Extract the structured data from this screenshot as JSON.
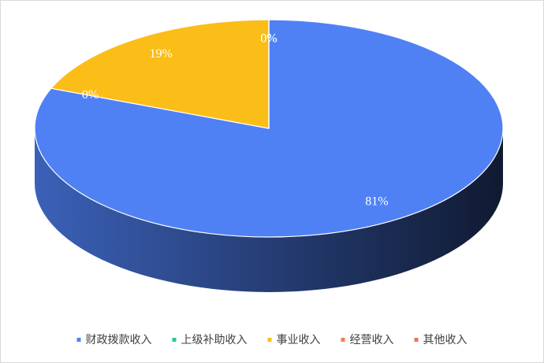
{
  "chart_data": {
    "type": "pie3d",
    "categories": [
      "财政拨款收入",
      "上级补助收入",
      "事业收入",
      "经营收入",
      "其他收入"
    ],
    "values": [
      81,
      0,
      19,
      0,
      0
    ],
    "value_labels": [
      "81%",
      "0%",
      "19%",
      "0%",
      "0%"
    ],
    "colors": [
      "#4f81f5",
      "#2cc6a0",
      "#fbbd17",
      "#f0804a",
      "#e8735a"
    ],
    "legend": "bottom"
  }
}
